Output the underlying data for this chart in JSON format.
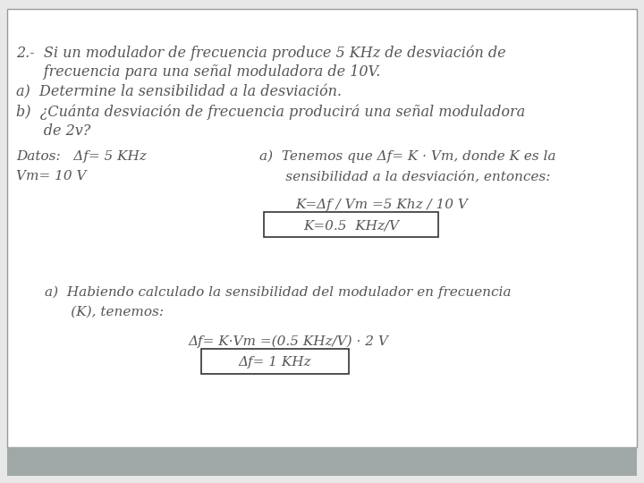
{
  "background_color": "#e8e8e8",
  "content_bg": "#ffffff",
  "text_color": "#555555",
  "border_color": "#999999",
  "title_line1": "2.-  Si un modulador de frecuencia produce 5 KHz de desviación de",
  "title_line2": "      frecuencia para una señal moduladora de 10V.",
  "item_a_q": "a)  Determine la sensibilidad a la desviación.",
  "item_b_q_line1": "b)  ¿Cuánta desviación de frecuencia producirá una señal moduladora",
  "item_b_q_line2": "      de 2v?",
  "datos_line1": "Datos:   Δf= 5 KHz",
  "datos_line2": "Vm= 10 V",
  "sol_a_text1": "a)  Tenemos que Δf= K · Vm, donde K es la",
  "sol_a_text2": "      sensibilidad a la desviación, entonces:",
  "sol_a_eq": "K=Δf / Vm =5 Khz / 10 V",
  "sol_a_box": "K=0.5  KHz/V",
  "sol_b_text1": "a)  Habiendo calculado la sensibilidad del modulador en frecuencia",
  "sol_b_text2": "      (K), tenemos:",
  "sol_b_eq": "Δf= K·Vm =(0.5 KHz/V) · 2 V",
  "sol_b_box": "Δf= 1 KHz",
  "font_size_title": 11.5,
  "font_size_body": 11.0,
  "font_size_eq": 11.0,
  "font_size_box": 11.0,
  "bottom_bar_color": "#a0a8a8"
}
